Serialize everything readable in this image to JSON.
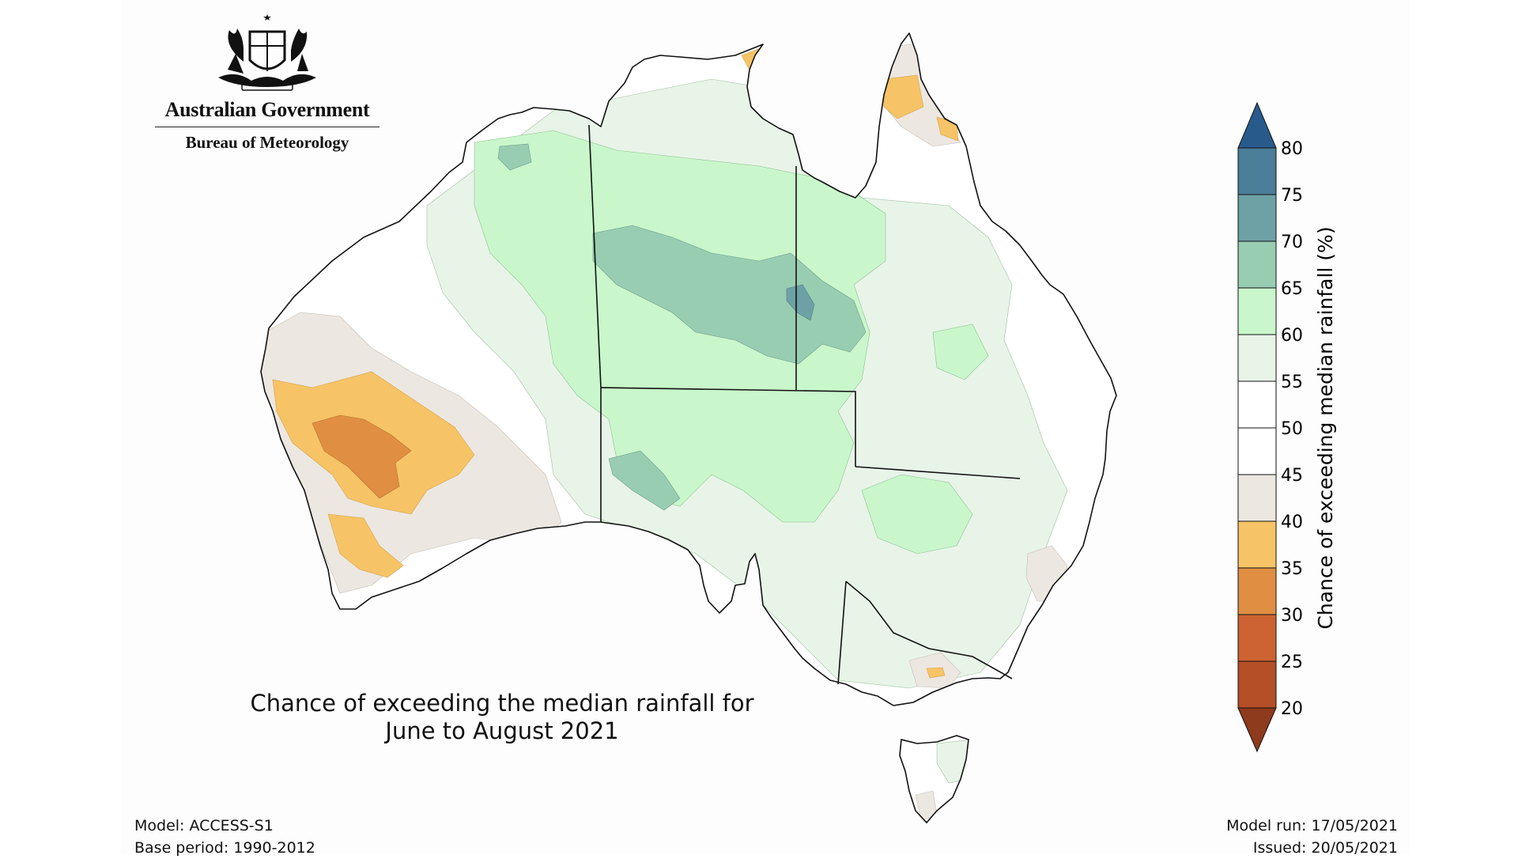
{
  "branding": {
    "government": "Australian Government",
    "bureau": "Bureau of Meteorology",
    "crest": "commonwealth-coat-of-arms"
  },
  "title": {
    "line1": "Chance of exceeding the median rainfall for",
    "line2": "June to August 2021"
  },
  "footer": {
    "model": "Model: ACCESS-S1",
    "base_period": "Base period: 1990-2012",
    "model_run": "Model run: 17/05/2021",
    "issued": "Issued: 20/05/2021"
  },
  "colorbar": {
    "label": "Chance of exceeding median rainfall (%)",
    "ticks": [
      "80",
      "75",
      "70",
      "65",
      "60",
      "55",
      "50",
      "45",
      "40",
      "35",
      "30",
      "25",
      "20"
    ],
    "colors_low_to_high": [
      "#8e3a1c",
      "#b44f28",
      "#cd6332",
      "#e08f42",
      "#f6c466",
      "#ece7e1",
      "#ffffff",
      "#ffffff",
      "#e8f4e8",
      "#c9f7cb",
      "#98cdb2",
      "#6ea1a5",
      "#4a7e99",
      "#285b8c"
    ],
    "extend": "both"
  },
  "map": {
    "region": "Australia",
    "colors": {
      "ocean": "#fdfdfd",
      "land": "#ffffff",
      "above_55": "#e8f4e8",
      "above_60": "#c9f7cb",
      "above_65": "#98cdb2",
      "above_70": "#6ea1a5",
      "below_45": "#ece7e1",
      "below_40": "#f6c466",
      "below_35": "#e08f42",
      "border": "#111111"
    }
  }
}
